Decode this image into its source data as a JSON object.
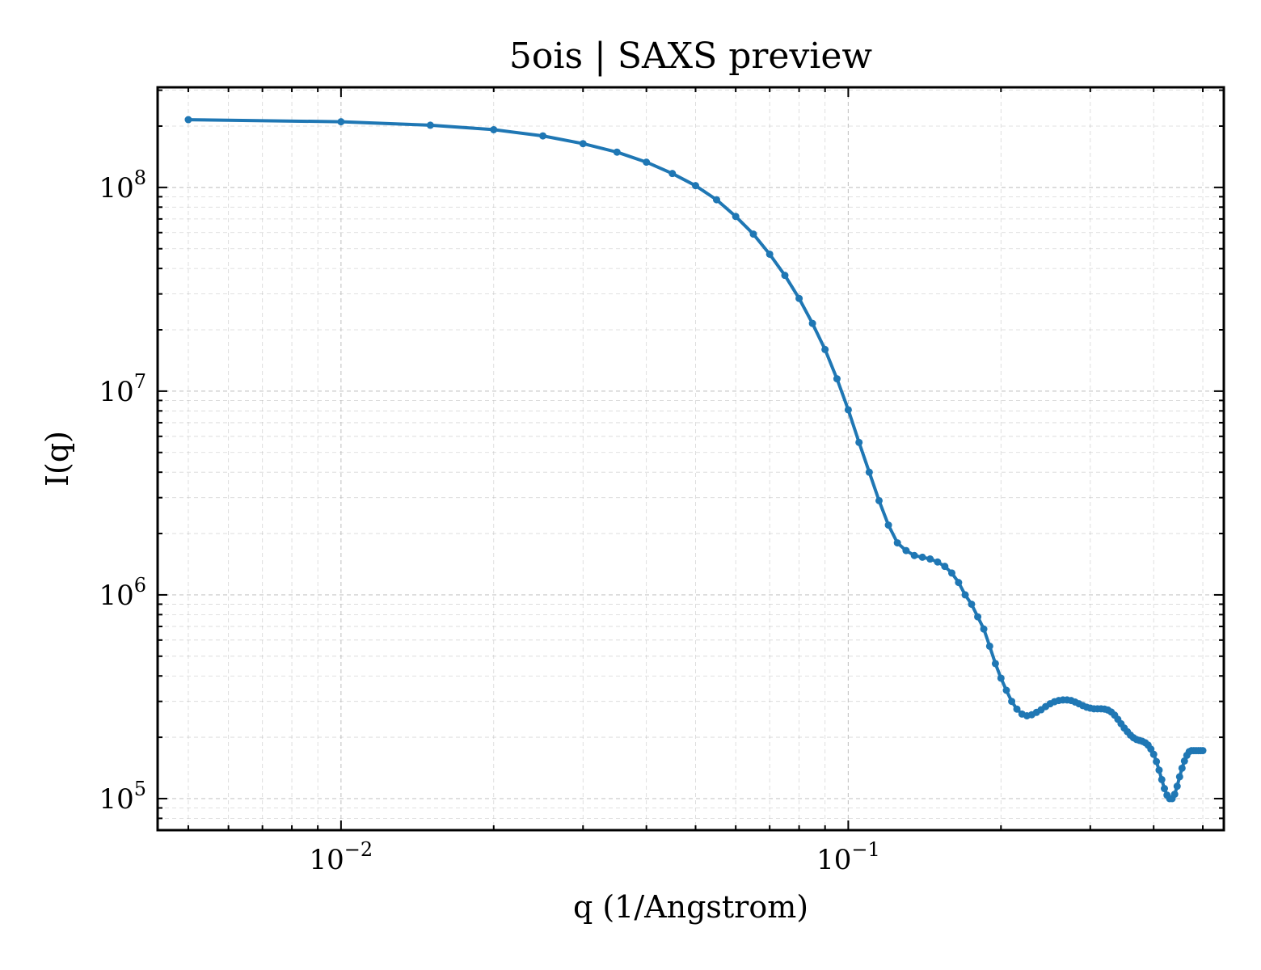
{
  "chart_data": {
    "type": "line",
    "title": "5ois | SAXS preview",
    "xlabel": "q (1/Angstrom)",
    "ylabel": "I(q)",
    "xscale": "log",
    "yscale": "log",
    "xlim": [
      0.00435,
      0.55
    ],
    "ylim": [
      70000,
      310000000
    ],
    "grid": true,
    "legend": "none",
    "color": "#1f77b4",
    "x_ticks": [
      {
        "value": 0.01,
        "base": "10",
        "exp": "−2"
      },
      {
        "value": 0.1,
        "base": "10",
        "exp": "−1"
      }
    ],
    "y_ticks": [
      {
        "value": 100000,
        "base": "10",
        "exp": "5"
      },
      {
        "value": 1000000,
        "base": "10",
        "exp": "6"
      },
      {
        "value": 10000000,
        "base": "10",
        "exp": "7"
      },
      {
        "value": 100000000,
        "base": "10",
        "exp": "8"
      }
    ],
    "series": [
      {
        "x": [
          0.005,
          0.01,
          0.015,
          0.02,
          0.025,
          0.03,
          0.035,
          0.04,
          0.045,
          0.05,
          0.055,
          0.06,
          0.065,
          0.07,
          0.075,
          0.08,
          0.085,
          0.09,
          0.095,
          0.1,
          0.105,
          0.11,
          0.115,
          0.12,
          0.125,
          0.13,
          0.135,
          0.14,
          0.145,
          0.15,
          0.155,
          0.16,
          0.165,
          0.17,
          0.175,
          0.18,
          0.185,
          0.19,
          0.195,
          0.2,
          0.205,
          0.21,
          0.215,
          0.22,
          0.225,
          0.23,
          0.235,
          0.24,
          0.245,
          0.25,
          0.255,
          0.26,
          0.265,
          0.27,
          0.275,
          0.28,
          0.285,
          0.29,
          0.295,
          0.3,
          0.305,
          0.31,
          0.315,
          0.32,
          0.325,
          0.33,
          0.335,
          0.34,
          0.345,
          0.35,
          0.355,
          0.36,
          0.365,
          0.37,
          0.375,
          0.38,
          0.385,
          0.39,
          0.395,
          0.4,
          0.405,
          0.41,
          0.415,
          0.42,
          0.425,
          0.43,
          0.435,
          0.44,
          0.445,
          0.45,
          0.455,
          0.46,
          0.465,
          0.47,
          0.475,
          0.48,
          0.485,
          0.49,
          0.495,
          0.5
        ],
        "y": [
          215000000,
          210000000,
          202000000,
          192000000,
          179000000,
          164000000,
          149000000,
          133000000,
          117000000,
          102000000,
          87000000,
          72000000,
          59000000,
          47000000,
          37000000,
          28500000,
          21500000,
          16000000,
          11500000,
          8100000,
          5600000,
          4000000,
          2900000,
          2200000,
          1800000,
          1650000,
          1560000,
          1530000,
          1500000,
          1450000,
          1380000,
          1280000,
          1150000,
          1000000,
          900000,
          780000,
          680000,
          560000,
          460000,
          390000,
          340000,
          300000,
          275000,
          260000,
          255000,
          258000,
          265000,
          273000,
          283000,
          292000,
          299000,
          303000,
          305000,
          305000,
          303000,
          298000,
          292000,
          286000,
          281000,
          278000,
          276000,
          276000,
          276000,
          275000,
          272000,
          266000,
          257000,
          245000,
          233000,
          222000,
          213000,
          205000,
          199000,
          195000,
          193000,
          191000,
          188000,
          183000,
          175000,
          165000,
          152000,
          138000,
          124000,
          112000,
          104000,
          100000,
          100000,
          105000,
          115000,
          128000,
          141000,
          153000,
          163000,
          170000,
          172000,
          172000,
          172000,
          172000,
          172000,
          172000
        ]
      }
    ]
  }
}
